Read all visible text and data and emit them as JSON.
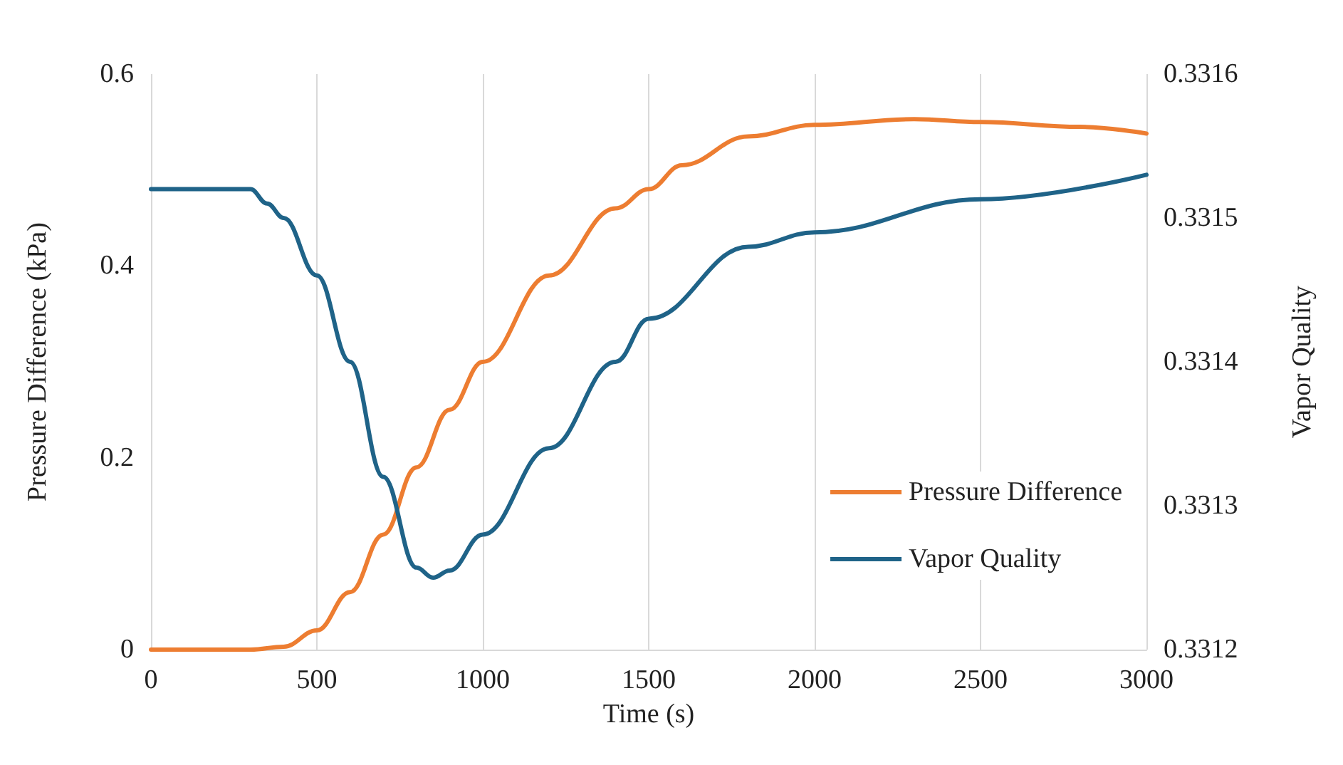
{
  "chart_data": {
    "type": "line",
    "xlabel": "Time (s)",
    "ylabel": "Pressure Difference (kPa)",
    "y2label": "Vapor Quality",
    "xlim": [
      0,
      3000
    ],
    "xticks": [
      0,
      500,
      1000,
      1500,
      2000,
      2500,
      3000
    ],
    "ylim": [
      0,
      0.6
    ],
    "yticks": [
      0,
      0.2,
      0.4,
      0.6
    ],
    "y2lim": [
      0.3312,
      0.3316
    ],
    "y2ticks": [
      0.3312,
      0.3313,
      0.3314,
      0.3315,
      0.3316
    ],
    "grid": "x",
    "legend": "bottom right",
    "marker": "none",
    "line_style": "solid",
    "series": [
      {
        "name": "Pressure Difference",
        "color": "#ed7d31",
        "x": [
          0,
          300,
          400,
          500,
          600,
          700,
          800,
          900,
          1000,
          1200,
          1400,
          1500,
          1600,
          1800,
          2000,
          2300,
          2500,
          2800,
          3000
        ],
        "values": [
          0,
          0,
          0.003,
          0.02,
          0.06,
          0.12,
          0.19,
          0.25,
          0.3,
          0.39,
          0.46,
          0.48,
          0.505,
          0.535,
          0.547,
          0.553,
          0.55,
          0.545,
          0.538
        ]
      },
      {
        "name": "Vapor Quality",
        "color": "#1f6388",
        "axis": "y2",
        "x": [
          0,
          300,
          350,
          400,
          500,
          600,
          700,
          800,
          850,
          900,
          1000,
          1200,
          1400,
          1500,
          1800,
          2000,
          2500,
          3000
        ],
        "values": [
          0.33152,
          0.33152,
          0.33151,
          0.3315,
          0.33146,
          0.3314,
          0.33132,
          0.331257,
          0.33125,
          0.331255,
          0.33128,
          0.33134,
          0.3314,
          0.33143,
          0.33148,
          0.33149,
          0.331513,
          0.33153
        ]
      }
    ]
  }
}
